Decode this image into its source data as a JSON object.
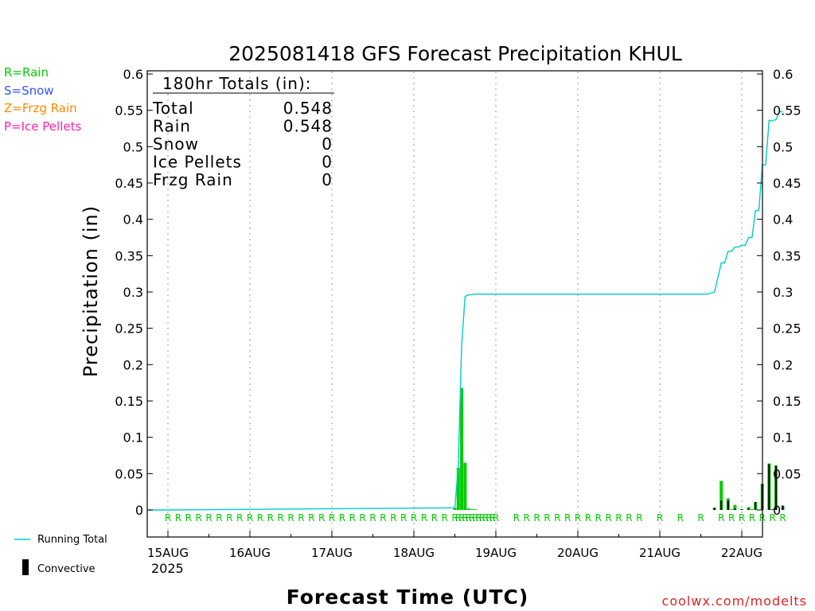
{
  "chart_data": {
    "type": "bar",
    "title": "2025081418 GFS Forecast Precipitation KHUL",
    "xlabel": "Forecast Time (UTC)",
    "ylabel": "Precipitation (in)",
    "ylim": [
      0,
      0.6
    ],
    "y_ticks": [
      "0",
      "0.05",
      "0.1",
      "0.15",
      "0.2",
      "0.25",
      "0.3",
      "0.35",
      "0.4",
      "0.45",
      "0.5",
      "0.55",
      "0.6"
    ],
    "x_ticks": [
      "15AUG",
      "16AUG",
      "17AUG",
      "18AUG",
      "19AUG",
      "20AUG",
      "21AUG",
      "22AUG"
    ],
    "x_year_label": "2025",
    "grid": "vertical dotted",
    "legend_type": {
      "rain": "R=Rain",
      "snow": "S=Snow",
      "frzg_rain": "Z=Frzg Rain",
      "ice_pellets": "P=Ice Pellets"
    },
    "legend_series": {
      "running_total": "Running Total",
      "convective": "Convective"
    },
    "totals_box": {
      "header": "180hr Totals (in):",
      "rows": [
        {
          "label": "Total",
          "value": "0.548"
        },
        {
          "label": "Rain",
          "value": "0.548"
        },
        {
          "label": "Snow",
          "value": "0"
        },
        {
          "label": "Ice Pellets",
          "value": "0"
        },
        {
          "label": "Frzg Rain",
          "value": "0"
        }
      ]
    },
    "forecast_hours": [
      84,
      85,
      86,
      87,
      88,
      89,
      90,
      160,
      162,
      164,
      165,
      166,
      168,
      170,
      171,
      172,
      174,
      176,
      177,
      178,
      180
    ],
    "precip_values": [
      0.003,
      0.058,
      0.168,
      0.065,
      0.002,
      0.001,
      0.001,
      0.003,
      0.04,
      0.016,
      0.001,
      0.007,
      0.001,
      0.004,
      0.001,
      0.011,
      0.036,
      0.064,
      0.001,
      0.061,
      0.006
    ],
    "convective_values": [
      0.0,
      0.0,
      0.0,
      0.0,
      0.0,
      0.0,
      0.0,
      0.003,
      0.013,
      0.013,
      0.0,
      0.002,
      0.001,
      0.002,
      0.0,
      0.011,
      0.036,
      0.063,
      0.001,
      0.061,
      0.006
    ],
    "running_total": {
      "hours": [
        0,
        84,
        85,
        86,
        87,
        88,
        90,
        158,
        160,
        162,
        163,
        164,
        165,
        166,
        167,
        168,
        169,
        170,
        171,
        172,
        173,
        174,
        175,
        176,
        177,
        178,
        179,
        180
      ],
      "values": [
        0,
        0.003,
        0.061,
        0.229,
        0.294,
        0.296,
        0.297,
        0.297,
        0.3,
        0.34,
        0.34,
        0.356,
        0.356,
        0.362,
        0.362,
        0.364,
        0.364,
        0.375,
        0.375,
        0.412,
        0.412,
        0.475,
        0.475,
        0.536,
        0.536,
        0.537,
        0.548,
        0.548
      ]
    },
    "type_marker_hours": [
      0,
      3,
      6,
      9,
      12,
      15,
      18,
      21,
      24,
      27,
      30,
      33,
      36,
      39,
      42,
      45,
      48,
      51,
      54,
      57,
      60,
      63,
      66,
      69,
      72,
      75,
      78,
      81,
      84,
      85,
      86,
      87,
      88,
      89,
      90,
      91,
      92,
      93,
      94,
      95,
      96,
      102,
      105,
      108,
      111,
      114,
      117,
      120,
      123,
      126,
      129,
      132,
      135,
      138,
      144,
      150,
      156,
      162,
      165,
      168,
      171,
      174,
      177,
      180
    ],
    "type_marker_symbol": "R"
  },
  "watermark": "coolwx.com/modelts",
  "colors": {
    "rain": "#00cc00",
    "snow": "#3355ff",
    "frzg_rain": "#ff8800",
    "ice_pellets": "#ff22aa",
    "running_total": "#00cccc",
    "convective": "#000000",
    "watermark": "#dd2222"
  }
}
